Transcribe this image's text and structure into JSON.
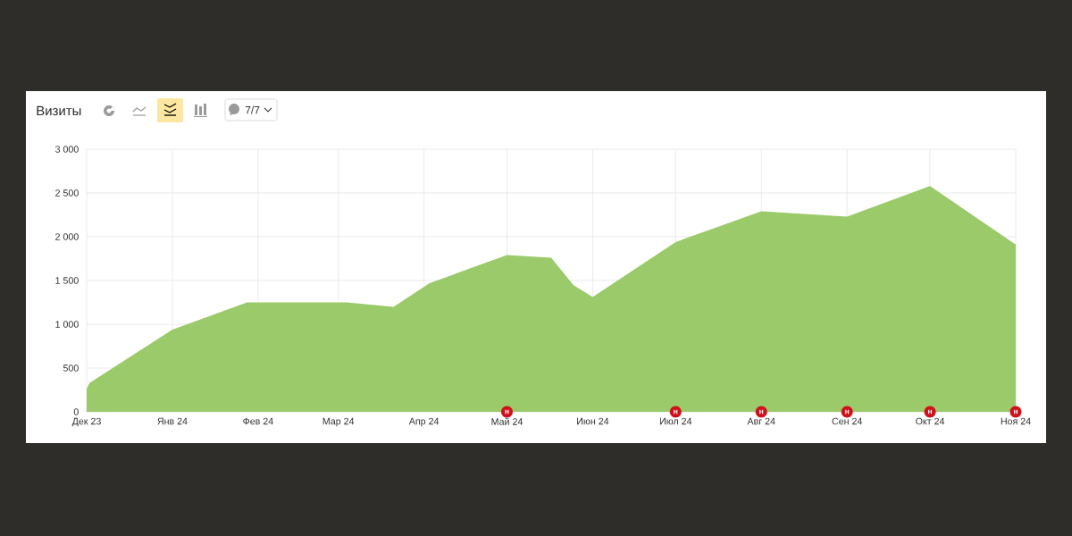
{
  "chart_data": {
    "type": "area",
    "title": "Визиты",
    "x": [
      "2023-12",
      "2023-12-02",
      "2024-01",
      "2024-01-28",
      "2024-03-04",
      "2024-03-21",
      "2024-04-03",
      "2024-05",
      "2024-05-17",
      "2024-05-25",
      "2024-06",
      "2024-07",
      "2024-08",
      "2024-09",
      "2024-10",
      "2024-11"
    ],
    "values": [
      260,
      330,
      940,
      1250,
      1250,
      1200,
      1470,
      1790,
      1760,
      1450,
      1310,
      1940,
      2290,
      2230,
      2580,
      1910
    ],
    "color": "#9aca69",
    "xlim": [
      "2023-12",
      "2024-11"
    ],
    "ylim": [
      0,
      3000
    ],
    "xticks": [
      {
        "value": "2023-12",
        "label": "Дек 23"
      },
      {
        "value": "2024-01",
        "label": "Янв 24"
      },
      {
        "value": "2024-02",
        "label": "Фев 24"
      },
      {
        "value": "2024-03",
        "label": "Мар 24"
      },
      {
        "value": "2024-04",
        "label": "Апр 24"
      },
      {
        "value": "2024-05",
        "label": "Май 24"
      },
      {
        "value": "2024-06",
        "label": "Июн 24"
      },
      {
        "value": "2024-07",
        "label": "Июл 24"
      },
      {
        "value": "2024-08",
        "label": "Авг 24"
      },
      {
        "value": "2024-09",
        "label": "Сен 24"
      },
      {
        "value": "2024-10",
        "label": "Окт 24"
      },
      {
        "value": "2024-11",
        "label": "Ноя 24"
      }
    ],
    "yticks": [
      0,
      500,
      {
        "value": 1000,
        "label": "1 000"
      },
      {
        "value": 1500,
        "label": "1 500"
      },
      {
        "value": 2000,
        "label": "2 000"
      },
      {
        "value": 2500,
        "label": "2 500"
      },
      {
        "value": 3000,
        "label": "3 000"
      }
    ],
    "grid": true,
    "annotations": [
      "7/7",
      {
        "text": "н",
        "x": "2024-05"
      },
      {
        "text": "н",
        "x": "2024-07"
      },
      {
        "text": "н",
        "x": "2024-08"
      },
      {
        "text": "н",
        "x": "2024-09"
      },
      {
        "text": "н",
        "x": "2024-10"
      },
      {
        "text": "н",
        "x": "2024-11"
      }
    ]
  }
}
